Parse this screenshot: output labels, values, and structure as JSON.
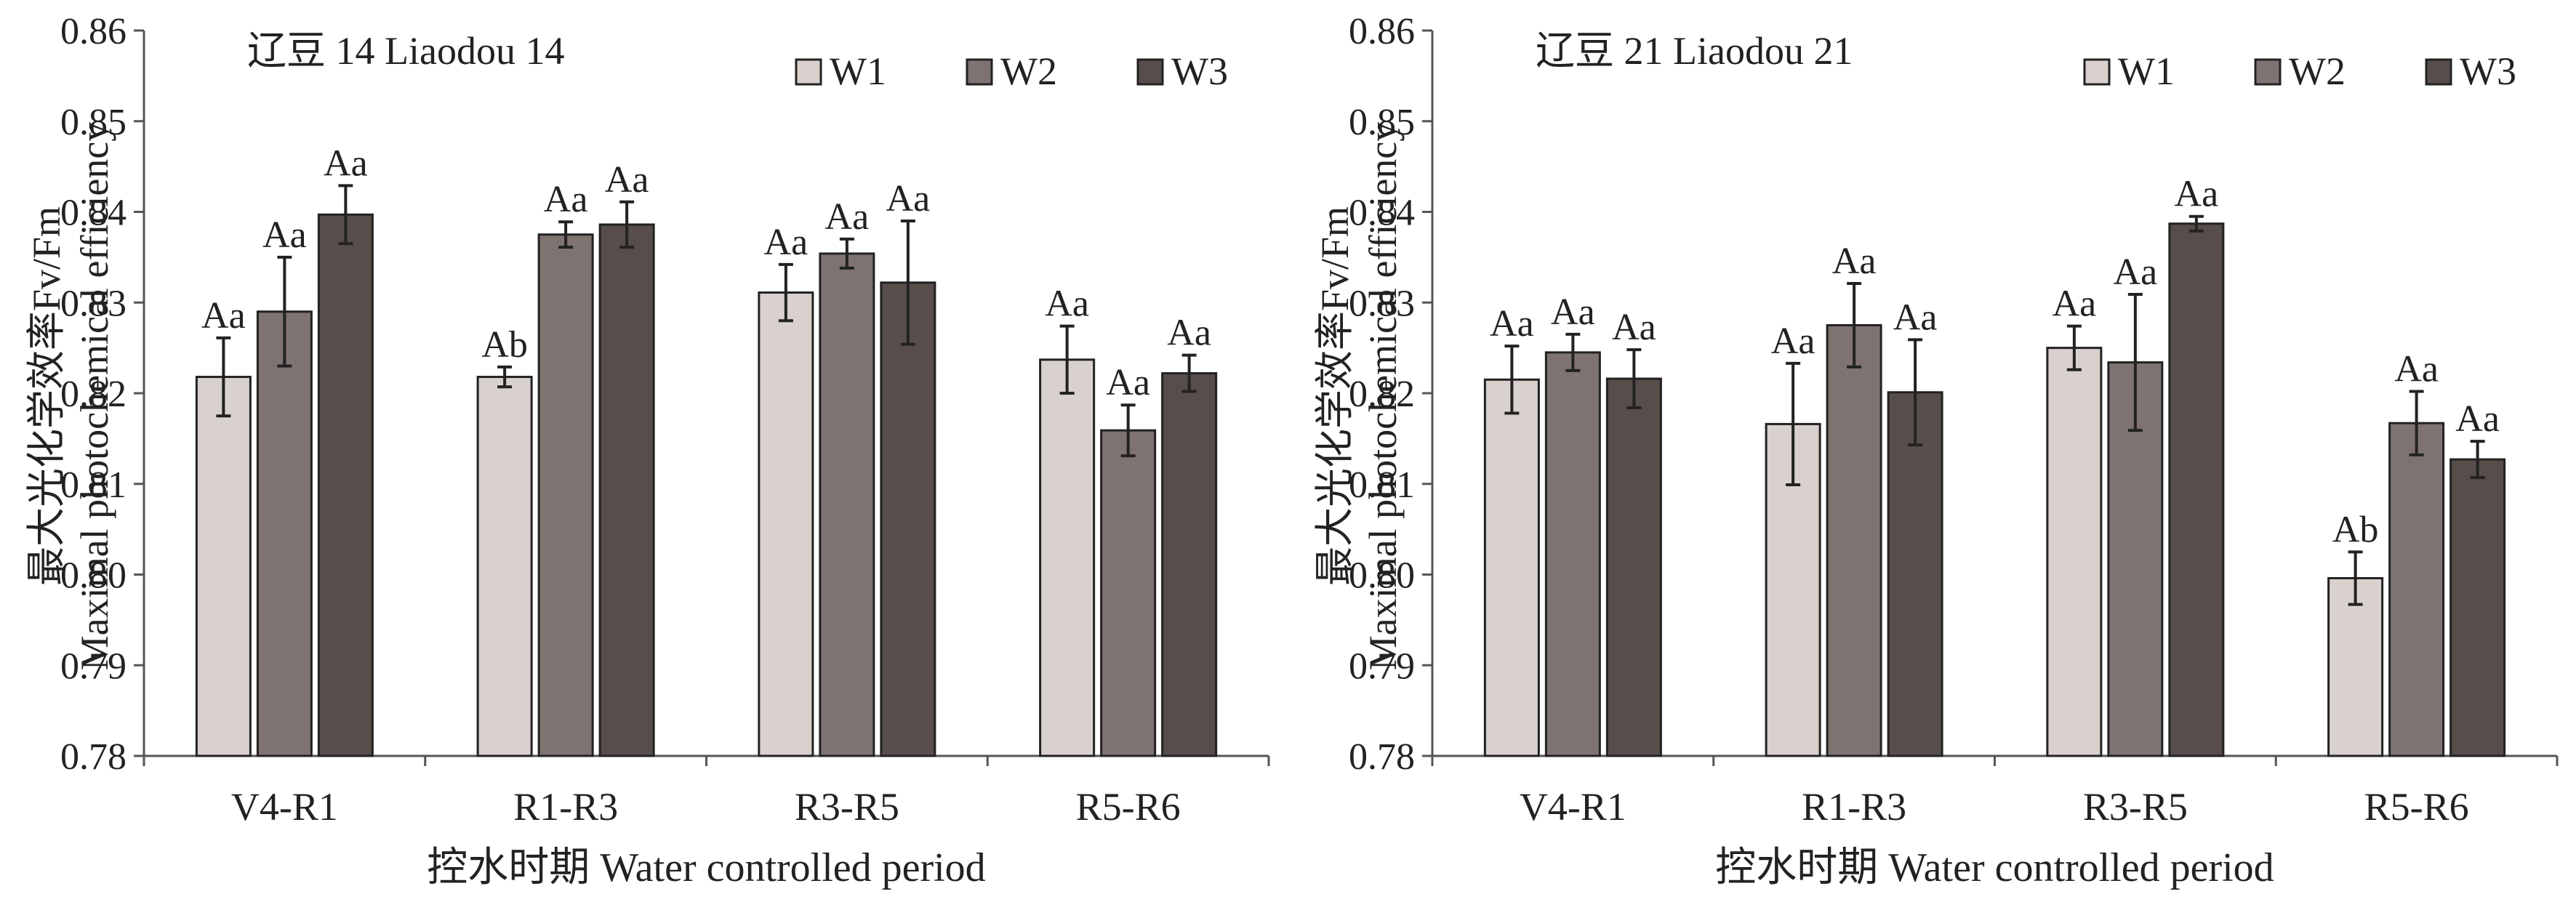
{
  "palette": {
    "W1": "#d9d1cd",
    "W2": "#7f7371",
    "W3": "#574d4a"
  },
  "chart_data": [
    {
      "type": "bar",
      "title": "辽豆 14 Liaodou 14",
      "ylabel_cn": "最大光化学效率Fv/Fm",
      "ylabel_en": "Maximal photochemical efficiency",
      "xlabel": "控水时期 Water controlled period",
      "categories": [
        "V4-R1",
        "R1-R3",
        "R3-R5",
        "R5-R6"
      ],
      "ylim": [
        0.78,
        0.86
      ],
      "yticks": [
        "0.78",
        "0.79",
        "0.80",
        "0.81",
        "0.82",
        "0.83",
        "0.84",
        "0.85",
        "0.86"
      ],
      "legend_position": "top-right",
      "grid": false,
      "series": [
        {
          "name": "W1",
          "values": [
            0.8218,
            0.8218,
            0.8311,
            0.8237
          ],
          "errors": [
            0.0043,
            0.0011,
            0.0031,
            0.0037
          ],
          "labels": [
            "Aa",
            "Ab",
            "Aa",
            "Aa"
          ]
        },
        {
          "name": "W2",
          "values": [
            0.829,
            0.8375,
            0.8354,
            0.8159
          ],
          "errors": [
            0.006,
            0.0014,
            0.0016,
            0.0028
          ],
          "labels": [
            "Aa",
            "Aa",
            "Aa",
            "Aa"
          ]
        },
        {
          "name": "W3",
          "values": [
            0.8397,
            0.8386,
            0.8322,
            0.8222
          ],
          "errors": [
            0.0032,
            0.0025,
            0.0068,
            0.002
          ],
          "labels": [
            "Aa",
            "Aa",
            "Aa",
            "Aa"
          ]
        }
      ]
    },
    {
      "type": "bar",
      "title": "辽豆 21 Liaodou 21",
      "ylabel_cn": "最大光化学效率Fv/Fm",
      "ylabel_en": "Maximal photochemical efficiency",
      "xlabel": "控水时期 Water controlled period",
      "categories": [
        "V4-R1",
        "R1-R3",
        "R3-R5",
        "R5-R6"
      ],
      "ylim": [
        0.78,
        0.86
      ],
      "yticks": [
        "0.78",
        "0.79",
        "0.80",
        "0.81",
        "0.82",
        "0.83",
        "0.84",
        "0.85",
        "0.86"
      ],
      "legend_position": "top-right",
      "grid": false,
      "series": [
        {
          "name": "W1",
          "values": [
            0.8215,
            0.8166,
            0.825,
            0.7996
          ],
          "errors": [
            0.0037,
            0.0067,
            0.0024,
            0.0029
          ],
          "labels": [
            "Aa",
            "Aa",
            "Aa",
            "Ab"
          ]
        },
        {
          "name": "W2",
          "values": [
            0.8245,
            0.8275,
            0.8234,
            0.8167
          ],
          "errors": [
            0.002,
            0.0046,
            0.0075,
            0.0035
          ],
          "labels": [
            "Aa",
            "Aa",
            "Aa",
            "Aa"
          ]
        },
        {
          "name": "W3",
          "values": [
            0.8216,
            0.8201,
            0.8387,
            0.8127
          ],
          "errors": [
            0.0032,
            0.0058,
            0.0008,
            0.002
          ],
          "labels": [
            "Aa",
            "Aa",
            "Aa",
            "Aa"
          ]
        }
      ]
    }
  ]
}
